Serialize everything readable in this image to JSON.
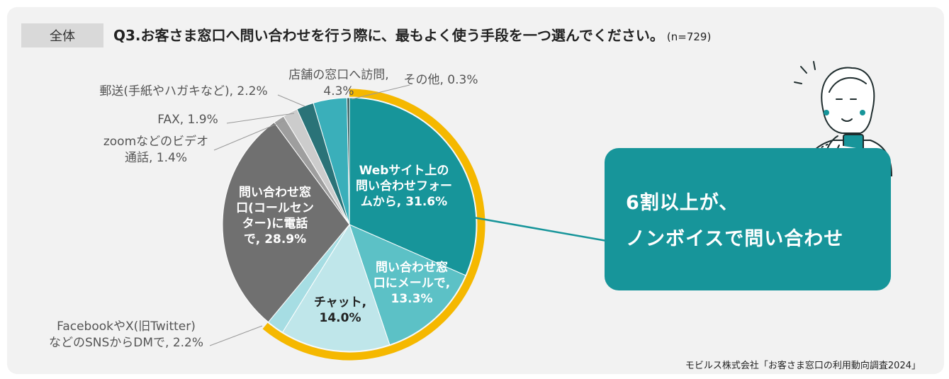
{
  "header": {
    "badge": "全体",
    "title": "Q3.お客さま窓口へ問い合わせを行う際に、最もよく使う手段を一つ選んでください。",
    "sample": "(n=729)"
  },
  "callout": {
    "line1": "6割以上が、",
    "line2": "ノンボイスで問い合わせ"
  },
  "source": "モビルス株式会社「お客さま窓口の利用動向調査2024」",
  "colors": {
    "background": "#f2f2f2",
    "accent": "#17959a",
    "highlight_ring": "#f5b800"
  },
  "chart_data": {
    "type": "pie",
    "title": "",
    "slices": [
      {
        "label_lines": [
          "Webサイト上の",
          "問い合わせフォー",
          "ムから, 31.6%"
        ],
        "category": "Webサイト上の問い合わせフォーム",
        "value": 31.6,
        "color": "#17959a",
        "nonvoice": true
      },
      {
        "label_lines": [
          "問い合わせ窓",
          "口にメールで,",
          "13.3%"
        ],
        "category": "問い合わせ窓口にメール",
        "value": 13.3,
        "color": "#5cc1c6",
        "nonvoice": true
      },
      {
        "label_lines": [
          "チャット,",
          "14.0%"
        ],
        "category": "チャット",
        "value": 14.0,
        "color": "#bfe6ea",
        "nonvoice": true
      },
      {
        "label_lines": [
          "FacebookやX(旧Twitter)",
          "などのSNSからDMで, 2.2%"
        ],
        "category": "FacebookやX(旧Twitter)などのSNSからDM",
        "value": 2.2,
        "color": "#a6dde3",
        "nonvoice": true
      },
      {
        "label_lines": [
          "問い合わせ窓",
          "口(コールセン",
          "ター)に電話",
          "で, 28.9%"
        ],
        "category": "問い合わせ窓口(コールセンター)に電話",
        "value": 28.9,
        "color": "#707070",
        "nonvoice": false
      },
      {
        "label_lines": [
          "zoomなどのビデオ",
          "通話, 1.4%"
        ],
        "category": "zoomなどのビデオ通話",
        "value": 1.4,
        "color": "#9e9e9e",
        "nonvoice": false
      },
      {
        "label_lines": [
          "FAX, 1.9%"
        ],
        "category": "FAX",
        "value": 1.9,
        "color": "#cccccc",
        "nonvoice": false
      },
      {
        "label_lines": [
          "郵送(手紙やハガキなど), 2.2%"
        ],
        "category": "郵送(手紙やハガキなど)",
        "value": 2.2,
        "color": "#2a7378",
        "nonvoice": false
      },
      {
        "label_lines": [
          "店舗の窓口へ訪問,",
          "4.3%"
        ],
        "category": "店舗の窓口へ訪問",
        "value": 4.3,
        "color": "#3aafba",
        "nonvoice": false
      },
      {
        "label_lines": [
          "その他, 0.3%"
        ],
        "category": "その他",
        "value": 0.3,
        "color": "#1f4a4d",
        "nonvoice": false
      }
    ]
  }
}
